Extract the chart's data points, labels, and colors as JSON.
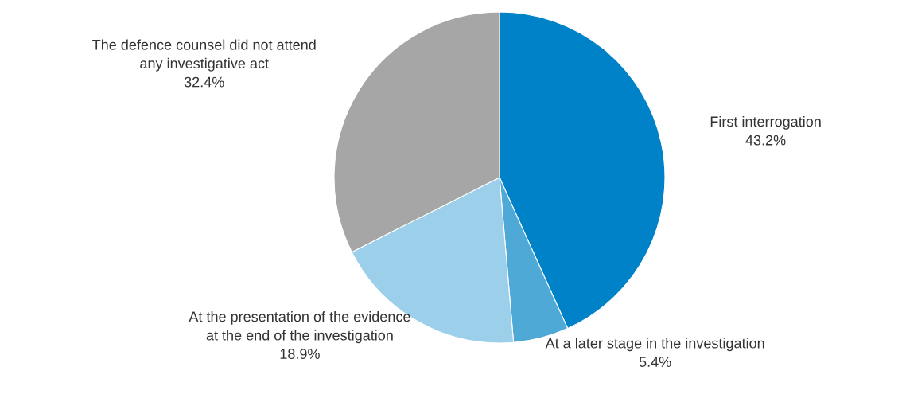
{
  "chart_data": {
    "type": "pie",
    "categories": [
      "First interrogation",
      "At a later stage in the investigation",
      "At the presentation of the evidence\nat the end of the investigation",
      "The defence counsel did not attend\nany investigative act"
    ],
    "values": [
      43.2,
      5.4,
      18.9,
      32.4
    ],
    "value_labels": [
      "43.2%",
      "5.4%",
      "18.9%",
      "32.4%"
    ],
    "colors": [
      "#0082c8",
      "#4fa9d6",
      "#9ccfea",
      "#a6a6a6"
    ],
    "legend": false
  }
}
